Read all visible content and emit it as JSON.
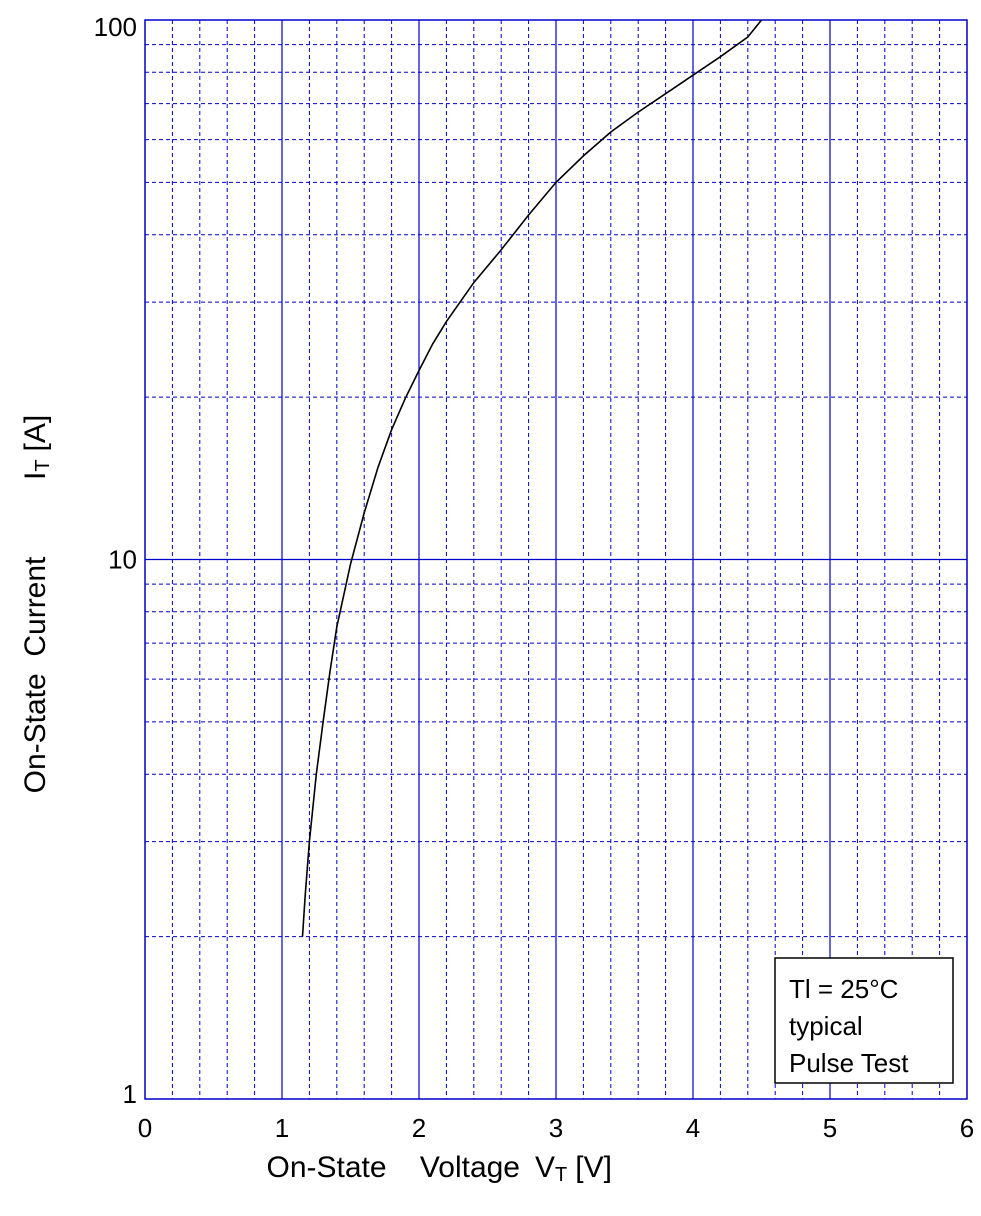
{
  "chart_data": {
    "type": "line",
    "title": "",
    "xlabel": {
      "text": "On-State    Voltage",
      "symbol": "V",
      "subscript": "T",
      "unit": "[V]"
    },
    "ylabel": {
      "text": "On-State  Current",
      "symbol": "I",
      "subscript": "T",
      "unit": "[A]"
    },
    "xlim": [
      0,
      6
    ],
    "ylim": [
      1,
      100
    ],
    "yscale": "log",
    "x_ticks": [
      "0",
      "1",
      "2",
      "3",
      "4",
      "5",
      "6"
    ],
    "y_ticks": [
      "1",
      "10",
      "100"
    ],
    "x_minor_step": 0.2,
    "y_minor": [
      2,
      3,
      4,
      5,
      6,
      7,
      8,
      9,
      20,
      30,
      40,
      50,
      60,
      70,
      80,
      90
    ],
    "grid": true,
    "grid_color": "#0000cc",
    "line_color": "#000000",
    "series": [
      {
        "x": [
          1.15,
          1.17,
          1.2,
          1.25,
          1.3,
          1.35,
          1.4,
          1.5,
          1.6,
          1.7,
          1.8,
          1.9,
          2.0,
          2.1,
          2.2,
          2.3,
          2.4,
          2.6,
          2.8,
          3.0,
          3.2,
          3.4,
          3.6,
          3.8,
          4.0,
          4.2,
          4.4,
          4.5
        ],
        "y": [
          2.0,
          2.4,
          3.0,
          4.0,
          5.0,
          6.2,
          7.5,
          9.8,
          12.2,
          14.8,
          17.4,
          19.9,
          22.4,
          25.1,
          27.6,
          30.0,
          32.6,
          37.5,
          43.5,
          50.0,
          56.0,
          62.0,
          67.5,
          73.0,
          79.0,
          85.5,
          93.0,
          100.0
        ]
      }
    ],
    "annotation": [
      "Tl = 25°C",
      "typical",
      "Pulse Test"
    ],
    "annotation_placement": "bottom-right"
  }
}
